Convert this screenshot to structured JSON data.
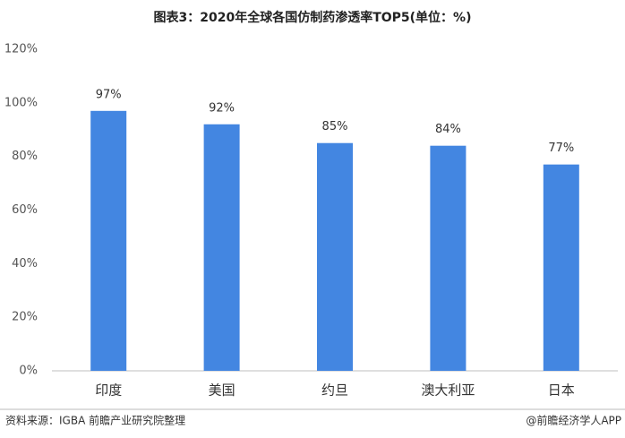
{
  "chart_data": {
    "type": "bar",
    "title": "图表3：2020年全球各国仿制药渗透率TOP5(单位：%)",
    "categories": [
      "印度",
      "美国",
      "约旦",
      "澳大利亚",
      "日本"
    ],
    "values": [
      97,
      92,
      85,
      84,
      77
    ],
    "value_labels": [
      "97%",
      "92%",
      "85%",
      "84%",
      "77%"
    ],
    "color": "#4386e1",
    "ylim": [
      0,
      120
    ],
    "yticks": [
      {
        "value": 0,
        "label": "0%"
      },
      {
        "value": 20,
        "label": "20%"
      },
      {
        "value": 40,
        "label": "40%"
      },
      {
        "value": 60,
        "label": "60%"
      },
      {
        "value": 80,
        "label": "80%"
      },
      {
        "value": 100,
        "label": "100%"
      },
      {
        "value": 120,
        "label": "120%"
      }
    ],
    "grid": false,
    "source": "资料来源：IGBA 前瞻产业研究院整理",
    "credit": "@前瞻经济学人APP"
  }
}
